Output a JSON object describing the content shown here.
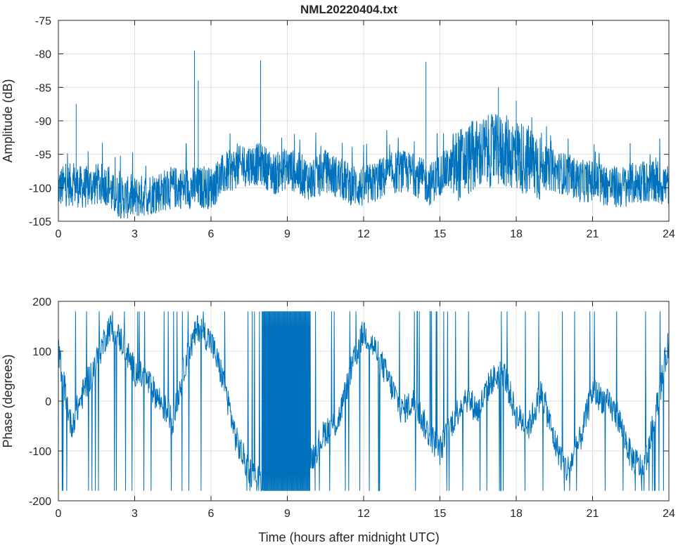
{
  "chart_data": [
    {
      "type": "line",
      "title": "NML20220404.txt",
      "xlabel": "",
      "ylabel": "Amplitude (dB)",
      "xlim": [
        0,
        24
      ],
      "ylim": [
        -105,
        -75
      ],
      "xticks": [
        "0",
        "3",
        "6",
        "9",
        "12",
        "15",
        "18",
        "21",
        "24"
      ],
      "yticks": [
        "-75",
        "-80",
        "-85",
        "-90",
        "-95",
        "-100",
        "-105"
      ],
      "grid": true,
      "color": "#0072bd",
      "series": [
        {
          "x": [
            0.0,
            0.5,
            1.0,
            1.5,
            2.0,
            2.1,
            2.5,
            3.0,
            3.5,
            4.0,
            4.5,
            5.0,
            5.3,
            5.5,
            6.0,
            6.5,
            7.0,
            7.5,
            8.0,
            8.5,
            9.0,
            9.5,
            10.0,
            10.5,
            11.0,
            11.5,
            12.0,
            12.5,
            13.0,
            13.5,
            14.0,
            14.4,
            14.6,
            15.0,
            15.5,
            16.0,
            16.5,
            17.0,
            17.5,
            18.0,
            18.5,
            19.0,
            19.5,
            20.0,
            20.5,
            21.0,
            21.5,
            22.0,
            22.5,
            23.0,
            23.5,
            24.0
          ],
          "values": [
            -100,
            -99.5,
            -100,
            -99.5,
            -99.5,
            -101,
            -101.5,
            -101.5,
            -101,
            -100.5,
            -100,
            -100,
            -100,
            -100,
            -100,
            -98,
            -97,
            -96.5,
            -96.5,
            -98,
            -97,
            -98,
            -99,
            -97.5,
            -98.5,
            -99.5,
            -100,
            -99,
            -98,
            -97.5,
            -98,
            -99,
            -99.5,
            -98,
            -97,
            -96,
            -95,
            -94.5,
            -94.5,
            -95,
            -96,
            -97,
            -97.5,
            -98,
            -99,
            -99,
            -99.5,
            -100,
            -99.5,
            -99,
            -99.5,
            -99.5
          ]
        }
      ],
      "peaks": [
        {
          "x": 0.7,
          "y": -87.5
        },
        {
          "x": 5.35,
          "y": -79.5
        },
        {
          "x": 5.5,
          "y": -84
        },
        {
          "x": 7.95,
          "y": -81
        },
        {
          "x": 14.45,
          "y": -81.2
        },
        {
          "x": 17.3,
          "y": -85
        },
        {
          "x": 18.0,
          "y": -87
        }
      ]
    },
    {
      "type": "line",
      "title": "",
      "xlabel": "Time (hours after midnight UTC)",
      "ylabel": "Phase (degrees)",
      "xlim": [
        0,
        24
      ],
      "ylim": [
        -200,
        200
      ],
      "xticks": [
        "0",
        "3",
        "6",
        "9",
        "12",
        "15",
        "18",
        "21",
        "24"
      ],
      "yticks": [
        "200",
        "100",
        "0",
        "-100",
        "-200"
      ],
      "grid": true,
      "color": "#0072bd",
      "series": [
        {
          "x": [
            0.0,
            0.5,
            1.0,
            1.5,
            2.0,
            2.5,
            3.0,
            3.5,
            4.0,
            4.5,
            5.0,
            5.5,
            6.0,
            6.5,
            7.0,
            7.5,
            8.0,
            8.5,
            9.0,
            9.5,
            10.0,
            10.5,
            11.0,
            11.5,
            12.0,
            12.5,
            13.0,
            13.5,
            14.0,
            14.5,
            15.0,
            15.5,
            16.0,
            16.5,
            17.0,
            17.5,
            18.0,
            18.5,
            19.0,
            19.5,
            20.0,
            20.5,
            21.0,
            21.5,
            22.0,
            22.5,
            23.0,
            23.5,
            24.0
          ],
          "values": [
            100,
            -50,
            20,
            80,
            150,
            120,
            60,
            40,
            0,
            -40,
            80,
            150,
            120,
            40,
            -80,
            -140,
            -160,
            -170,
            -170,
            -150,
            -110,
            -60,
            -40,
            60,
            140,
            100,
            40,
            -20,
            0,
            -60,
            -100,
            -40,
            10,
            -20,
            40,
            60,
            -30,
            -50,
            20,
            -80,
            -140,
            -80,
            20,
            0,
            -30,
            -110,
            -140,
            -20,
            120
          ]
        }
      ],
      "wrap_region": {
        "x_start": 8.0,
        "x_end": 9.9
      }
    }
  ]
}
